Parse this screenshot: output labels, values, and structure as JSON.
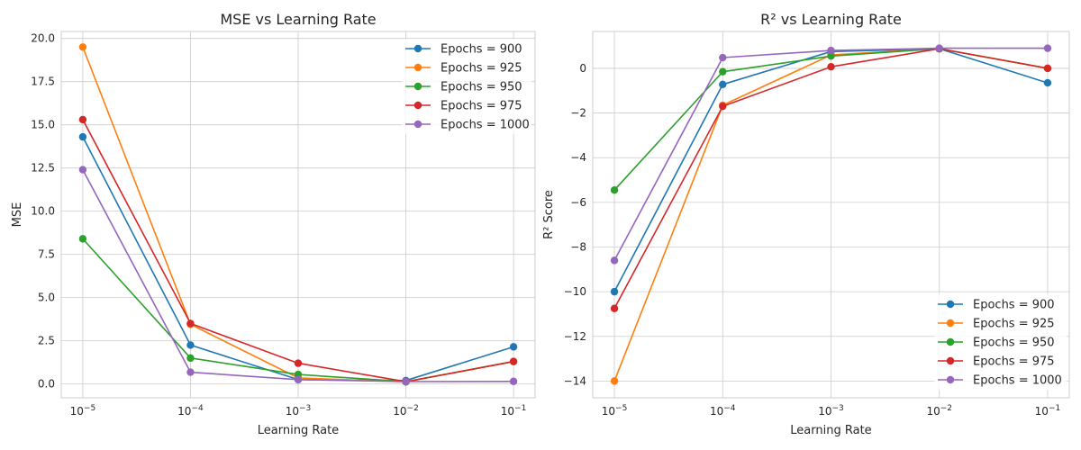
{
  "chart_data": [
    {
      "type": "line",
      "title": "MSE vs Learning Rate",
      "xlabel": "Learning Rate",
      "ylabel": "MSE",
      "x_scale": "log",
      "x": [
        1e-05,
        0.0001,
        0.001,
        0.01,
        0.1
      ],
      "x_tick_labels": [
        {
          "base": "10",
          "exp": "−5"
        },
        {
          "base": "10",
          "exp": "−4"
        },
        {
          "base": "10",
          "exp": "−3"
        },
        {
          "base": "10",
          "exp": "−2"
        },
        {
          "base": "10",
          "exp": "−1"
        }
      ],
      "ylim": [
        -0.8,
        20.4
      ],
      "y_ticks": [
        0.0,
        2.5,
        5.0,
        7.5,
        10.0,
        12.5,
        15.0,
        17.5,
        20.0
      ],
      "y_tick_labels": [
        "0.0",
        "2.5",
        "5.0",
        "7.5",
        "10.0",
        "12.5",
        "15.0",
        "17.5",
        "20.0"
      ],
      "grid": true,
      "legend_position": "upper-right",
      "series": [
        {
          "name": "Epochs = 900",
          "color": "#1f77b4",
          "values": [
            14.3,
            2.25,
            0.25,
            0.2,
            2.15
          ]
        },
        {
          "name": "Epochs = 925",
          "color": "#ff7f0e",
          "values": [
            19.5,
            3.45,
            0.35,
            0.12,
            1.3
          ]
        },
        {
          "name": "Epochs = 950",
          "color": "#2ca02c",
          "values": [
            8.4,
            1.5,
            0.55,
            0.13,
            1.3
          ]
        },
        {
          "name": "Epochs = 975",
          "color": "#d62728",
          "values": [
            15.3,
            3.5,
            1.2,
            0.13,
            1.3
          ]
        },
        {
          "name": "Epochs = 1000",
          "color": "#9467bd",
          "values": [
            12.4,
            0.68,
            0.25,
            0.14,
            0.15
          ]
        }
      ]
    },
    {
      "type": "line",
      "title": "R² vs Learning Rate",
      "xlabel": "Learning Rate",
      "ylabel": "R² Score",
      "x_scale": "log",
      "x": [
        1e-05,
        0.0001,
        0.001,
        0.01,
        0.1
      ],
      "x_tick_labels": [
        {
          "base": "10",
          "exp": "−5"
        },
        {
          "base": "10",
          "exp": "−4"
        },
        {
          "base": "10",
          "exp": "−3"
        },
        {
          "base": "10",
          "exp": "−2"
        },
        {
          "base": "10",
          "exp": "−1"
        }
      ],
      "ylim": [
        -14.75,
        1.65
      ],
      "y_ticks": [
        -14,
        -12,
        -10,
        -8,
        -6,
        -4,
        -2,
        0
      ],
      "y_tick_labels": [
        "−14",
        "−12",
        "−10",
        "−8",
        "−6",
        "−4",
        "−2",
        "0"
      ],
      "grid": true,
      "legend_position": "lower-right",
      "series": [
        {
          "name": "Epochs = 900",
          "color": "#1f77b4",
          "values": [
            -10.0,
            -0.72,
            0.75,
            0.88,
            -0.65
          ]
        },
        {
          "name": "Epochs = 925",
          "color": "#ff7f0e",
          "values": [
            -14.0,
            -1.65,
            0.6,
            0.88,
            0.0
          ]
        },
        {
          "name": "Epochs = 950",
          "color": "#2ca02c",
          "values": [
            -5.45,
            -0.15,
            0.55,
            0.88,
            0.0
          ]
        },
        {
          "name": "Epochs = 975",
          "color": "#d62728",
          "values": [
            -10.75,
            -1.7,
            0.07,
            0.88,
            0.0
          ]
        },
        {
          "name": "Epochs = 1000",
          "color": "#9467bd",
          "values": [
            -8.6,
            0.48,
            0.8,
            0.9,
            0.9
          ]
        }
      ]
    }
  ]
}
